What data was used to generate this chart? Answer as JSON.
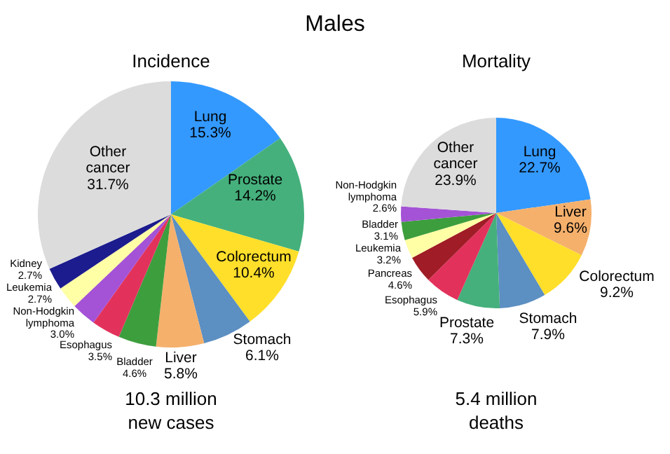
{
  "chart_data": [
    {
      "type": "pie",
      "title": "Males",
      "subtitle": "Incidence",
      "annotations": [
        "10.3 million new cases"
      ],
      "categories": [
        "Lung",
        "Prostate",
        "Colorectum",
        "Stomach",
        "Liver",
        "Bladder",
        "Esophagus",
        "Non-Hodgkin lymphoma",
        "Leukemia",
        "Kidney",
        "Other cancer"
      ],
      "values": [
        15.3,
        14.2,
        10.4,
        6.1,
        5.8,
        4.6,
        3.5,
        3.0,
        2.7,
        2.7,
        31.7
      ],
      "value_labels": [
        "15.3%",
        "14.2%",
        "10.4%",
        "6.1%",
        "5.8%",
        "4.6%",
        "3.5%",
        "3.0%",
        "2.7%",
        "2.7%",
        "31.7%"
      ],
      "colors": [
        "#3399ff",
        "#45b07c",
        "#ffdf2a",
        "#5c8fc2",
        "#f5b06c",
        "#3d9e3d",
        "#e2325c",
        "#a452d6",
        "#ffffa6",
        "#1c1c8e",
        "#dcdcdc"
      ]
    },
    {
      "type": "pie",
      "subtitle": "Mortality",
      "annotations": [
        "5.4 million deaths"
      ],
      "categories": [
        "Lung",
        "Liver",
        "Colorectum",
        "Stomach",
        "Prostate",
        "Esophagus",
        "Pancreas",
        "Leukemia",
        "Bladder",
        "Non-Hodgkin lymphoma",
        "Other cancer"
      ],
      "values": [
        22.7,
        9.6,
        9.2,
        7.9,
        7.3,
        5.9,
        4.6,
        3.2,
        3.1,
        2.6,
        23.9
      ],
      "value_labels": [
        "22.7%",
        "9.6%",
        "9.2%",
        "7.9%",
        "7.3%",
        "5.9%",
        "4.6%",
        "3.2%",
        "3.1%",
        "2.6%",
        "23.9%"
      ],
      "colors": [
        "#3399ff",
        "#f5b06c",
        "#ffdf2a",
        "#5c8fc2",
        "#45b07c",
        "#e2325c",
        "#a01c26",
        "#ffffa6",
        "#3d9e3d",
        "#a452d6",
        "#dcdcdc"
      ]
    }
  ]
}
